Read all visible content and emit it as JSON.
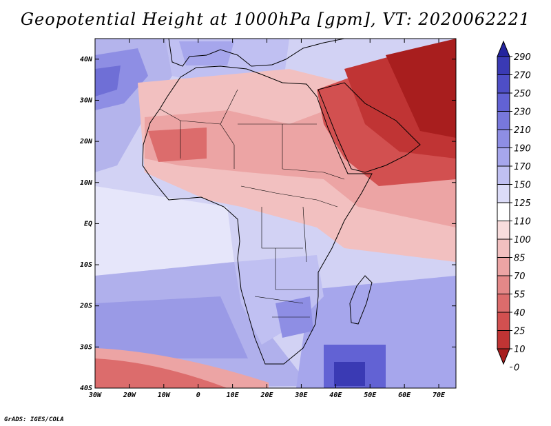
{
  "title": "Geopotential Height at 1000hPa [gpm], VT: 2020062221",
  "credit": "GrADS: IGES/COLA",
  "map": {
    "lon_min": -30,
    "lon_max": 75,
    "lat_min": -40,
    "lat_max": 45,
    "lat_ticks": [
      {
        "value": 40,
        "label": "40N"
      },
      {
        "value": 30,
        "label": "30N"
      },
      {
        "value": 20,
        "label": "20N"
      },
      {
        "value": 10,
        "label": "10N"
      },
      {
        "value": 0,
        "label": "EQ"
      },
      {
        "value": -10,
        "label": "10S"
      },
      {
        "value": -20,
        "label": "20S"
      },
      {
        "value": -30,
        "label": "30S"
      },
      {
        "value": -40,
        "label": "40S"
      }
    ],
    "lon_ticks": [
      {
        "value": -30,
        "label": "30W"
      },
      {
        "value": -20,
        "label": "20W"
      },
      {
        "value": -10,
        "label": "10W"
      },
      {
        "value": 0,
        "label": "0"
      },
      {
        "value": 10,
        "label": "10E"
      },
      {
        "value": 20,
        "label": "20E"
      },
      {
        "value": 30,
        "label": "30E"
      },
      {
        "value": 40,
        "label": "40E"
      },
      {
        "value": 50,
        "label": "50E"
      },
      {
        "value": 60,
        "label": "60E"
      },
      {
        "value": 70,
        "label": "70E"
      }
    ]
  },
  "colorbar": {
    "labels": [
      "290",
      "270",
      "250",
      "230",
      "210",
      "190",
      "170",
      "150",
      "125",
      "110",
      "100",
      "85",
      "70",
      "55",
      "40",
      "25",
      "10",
      "0"
    ],
    "colors": [
      "#24249e",
      "#3a3ab4",
      "#4e4ec6",
      "#6262d4",
      "#7878dc",
      "#8e8ee4",
      "#a6a6ec",
      "#c0c0f2",
      "#dcdcf8",
      "#ffffff",
      "#f8dcdc",
      "#f2c0c0",
      "#eca4a4",
      "#e48888",
      "#dc6c6c",
      "#d25050",
      "#c03434",
      "#a81e1e"
    ]
  }
}
